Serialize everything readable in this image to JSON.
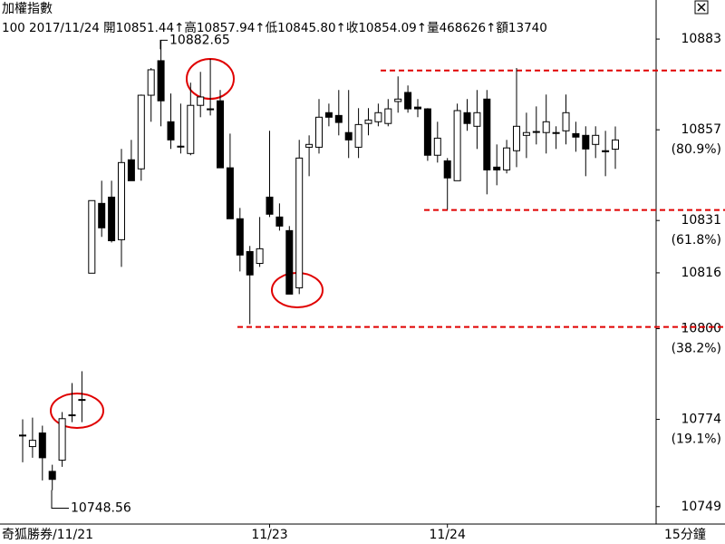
{
  "chart_data": {
    "type": "candlestick",
    "title": "加權指數",
    "subtitle": "100 2017/11/24 開10851.44↑高10857.94↑低10845.80↑收10854.09↑量468626↑額13740",
    "source_label": "奇狐勝券/11/21",
    "interval": "15分鐘",
    "categories": [
      null,
      null,
      null,
      null,
      null,
      null,
      null,
      null,
      null,
      null,
      null,
      null,
      null,
      null,
      null,
      null,
      null,
      null,
      null,
      null,
      null,
      null,
      null,
      null,
      null,
      "11/23",
      null,
      null,
      null,
      null,
      null,
      null,
      null,
      null,
      null,
      null,
      null,
      null,
      null,
      null,
      null,
      null,
      null,
      "11/24",
      null,
      null,
      null,
      null,
      null,
      null,
      null,
      null,
      null,
      null,
      null,
      null,
      null,
      null,
      null,
      null,
      null
    ],
    "open": [
      10769.5,
      10766.2,
      10770.1,
      10759.1,
      10762.3,
      10775.3,
      10779.7,
      10815.9,
      10835.9,
      10837.7,
      10825.5,
      10848.4,
      10845.8,
      10866.9,
      10876.8,
      10859.3,
      10852.3,
      10850.2,
      10864.0,
      10863.0,
      10865.3,
      10846.1,
      10831.5,
      10822.1,
      10818.7,
      10837.7,
      10832.0,
      10828.1,
      10811.7,
      10852.0,
      10852.0,
      10861.9,
      10861.1,
      10856.2,
      10852.0,
      10858.8,
      10859.3,
      10858.8,
      10865.1,
      10867.7,
      10863.5,
      10863.0,
      10849.7,
      10848.1,
      10842.4,
      10861.9,
      10858.0,
      10865.8,
      10846.3,
      10845.5,
      10851.0,
      10855.4,
      10856.5,
      10856.2,
      10856.2,
      10856.7,
      10855.9,
      10855.4,
      10852.8,
      10851.0,
      10851.44
    ],
    "high": [
      10774.0,
      10774.5,
      10772.2,
      10761.0,
      10776.1,
      10784.4,
      10787.8,
      10836.7,
      10842.4,
      10842.4,
      10851.5,
      10854.1,
      10867.1,
      10874.7,
      10882.65,
      10867.4,
      10864.5,
      10870.5,
      10873.6,
      10877.3,
      10868.4,
      10855.9,
      10834.6,
      10823.7,
      10832.0,
      10856.7,
      10835.9,
      10829.4,
      10854.1,
      10855.4,
      10865.8,
      10864.5,
      10868.4,
      10868.4,
      10863.2,
      10863.2,
      10864.5,
      10865.8,
      10872.3,
      10869.7,
      10865.8,
      10863.2,
      10859.3,
      10848.9,
      10864.5,
      10865.8,
      10868.4,
      10868.4,
      10852.8,
      10854.1,
      10874.7,
      10861.9,
      10863.7,
      10867.1,
      10858.0,
      10867.1,
      10859.3,
      10858.0,
      10858.0,
      10856.7,
      10857.94
    ],
    "low": [
      10761.7,
      10763.0,
      10756.5,
      10753.7,
      10760.4,
      10773.2,
      10773.2,
      10815.9,
      10826.3,
      10824.7,
      10817.7,
      10842.4,
      10842.4,
      10859.3,
      10858.0,
      10851.5,
      10850.2,
      10849.7,
      10860.6,
      10861.1,
      10846.1,
      10831.5,
      10816.4,
      10801.3,
      10817.7,
      10832.0,
      10828.1,
      10809.9,
      10809.9,
      10843.7,
      10850.2,
      10858.0,
      10855.4,
      10848.9,
      10848.9,
      10855.4,
      10858.0,
      10858.0,
      10861.9,
      10861.9,
      10860.6,
      10848.1,
      10847.6,
      10834.1,
      10842.4,
      10856.7,
      10851.5,
      10838.5,
      10841.1,
      10844.5,
      10846.3,
      10848.9,
      10852.8,
      10850.2,
      10851.5,
      10852.8,
      10850.7,
      10843.7,
      10848.9,
      10843.7,
      10845.8
    ],
    "close": [
      10769.5,
      10768.0,
      10763.0,
      10756.8,
      10774.2,
      10775.3,
      10779.7,
      10836.7,
      10828.9,
      10825.2,
      10847.6,
      10842.4,
      10866.9,
      10874.2,
      10865.3,
      10854.1,
      10852.3,
      10864.0,
      10866.4,
      10863.0,
      10846.1,
      10831.5,
      10821.1,
      10815.4,
      10822.9,
      10832.8,
      10829.4,
      10809.9,
      10848.9,
      10852.8,
      10860.6,
      10860.6,
      10859.1,
      10854.1,
      10858.5,
      10859.8,
      10861.9,
      10863.0,
      10865.8,
      10863.0,
      10863.0,
      10849.7,
      10854.6,
      10843.2,
      10862.5,
      10858.8,
      10861.9,
      10845.5,
      10845.5,
      10851.8,
      10858.0,
      10856.2,
      10856.5,
      10859.3,
      10856.2,
      10861.9,
      10854.9,
      10851.5,
      10855.4,
      10850.7,
      10854.09
    ],
    "ylim": [
      10744,
      10889
    ],
    "yticks": [
      10883,
      10857,
      10831,
      10816,
      10800,
      10774,
      10749
    ],
    "ratio_labels": [
      null,
      "(80.9%)",
      "(61.8%)",
      null,
      "(38.2%)",
      "(19.1%)",
      null
    ],
    "reference_lines": [
      10874,
      10834,
      10800.5
    ],
    "reference_color": "#e00000",
    "up_color": "#ffffff",
    "down_color": "#000000",
    "annotations": [
      {
        "label": "10882.65",
        "value": 10882.65
      },
      {
        "label": "10748.56",
        "value": 10748.56
      }
    ]
  }
}
